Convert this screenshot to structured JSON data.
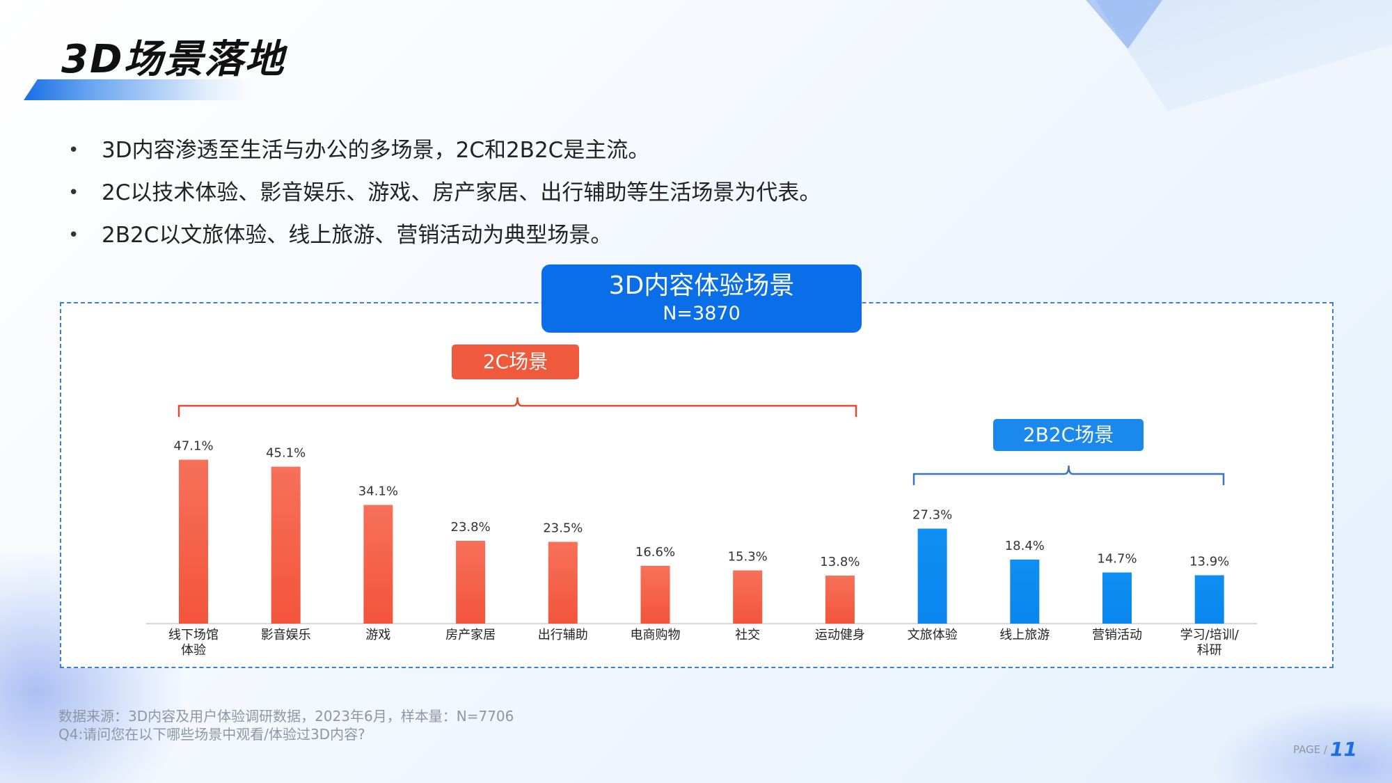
{
  "title": "3D场景落地",
  "bullets": [
    "3D内容渗透至生活与办公的多场景，2C和2B2C是主流。",
    "2C以技术体验、影音娱乐、游戏、房产家居、出行辅助等生活场景为代表。",
    "2B2C以文旅体验、线上旅游、营销活动为典型场景。"
  ],
  "chart_header": {
    "title": "3D内容体验场景",
    "sample": "N=3870"
  },
  "group_tags": {
    "c2": "2C场景",
    "b2b2c": "2B2C场景"
  },
  "colors": {
    "c2": "#f2553a",
    "b2b2c": "#0a86ee",
    "header": "#0a6ee8"
  },
  "chart_data": {
    "type": "bar",
    "categories": [
      "线下场馆\n体验",
      "影音娱乐",
      "游戏",
      "房产家居",
      "出行辅助",
      "电商购物",
      "社交",
      "运动健身",
      "文旅体验",
      "线上旅游",
      "营销活动",
      "学习/培训/\n科研"
    ],
    "series": [
      {
        "values": [
          47.1,
          45.1,
          34.1,
          23.8,
          23.5,
          16.6,
          15.3,
          13.8,
          27.3,
          18.4,
          14.7,
          13.9
        ],
        "labels": [
          "47.1%",
          "45.1%",
          "34.1%",
          "23.8%",
          "23.5%",
          "16.6%",
          "15.3%",
          "13.8%",
          "27.3%",
          "18.4%",
          "14.7%",
          "13.9%"
        ],
        "groups": [
          "2C场景",
          "2C场景",
          "2C场景",
          "2C场景",
          "2C场景",
          "2C场景",
          "2C场景",
          "2C场景",
          "2B2C场景",
          "2B2C场景",
          "2B2C场景",
          "2B2C场景"
        ]
      }
    ],
    "ylim": [
      0,
      50
    ],
    "unit": "%",
    "grid": false
  },
  "source_lines": [
    "数据来源：3D内容及用户体验调研数据，2023年6月，样本量：N=7706",
    "Q4:请问您在以下哪些场景中观看/体验过3D内容?"
  ],
  "page": {
    "label": "PAGE /",
    "number": "11"
  }
}
